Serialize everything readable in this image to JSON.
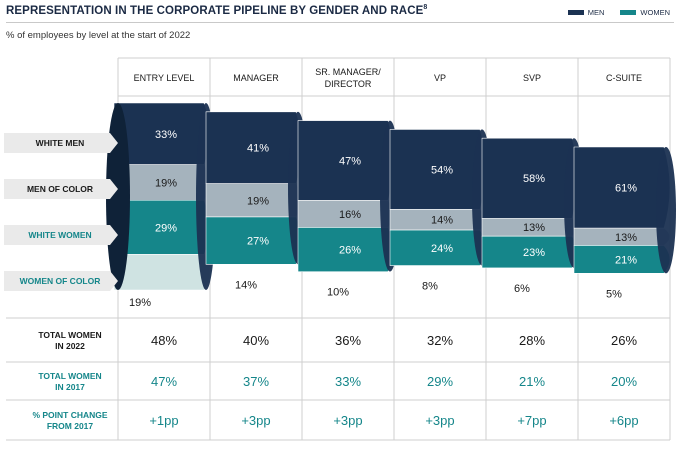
{
  "title": "REPRESENTATION IN THE CORPORATE PIPELINE BY GENDER AND RACE",
  "title_footnote": "8",
  "subtitle": "% of employees by level at the start of 2022",
  "legend": {
    "men": "MEN",
    "women": "WOMEN"
  },
  "colors": {
    "men": "#1b3252",
    "men_light": "#a5b3bd",
    "women": "#15868a",
    "women_light": "#cfe3e2",
    "pct_gray": "#eaeaea"
  },
  "chart_data": {
    "type": "bar",
    "categories": [
      "ENTRY LEVEL",
      "MANAGER",
      "SR. MANAGER/ DIRECTOR",
      "VP",
      "SVP",
      "C-SUITE"
    ],
    "series": [
      {
        "name": "WHITE MEN",
        "values": [
          33,
          41,
          47,
          54,
          58,
          61
        ]
      },
      {
        "name": "MEN OF COLOR",
        "values": [
          19,
          19,
          16,
          14,
          13,
          13
        ]
      },
      {
        "name": "WHITE WOMEN",
        "values": [
          29,
          27,
          26,
          24,
          23,
          21
        ]
      },
      {
        "name": "WOMEN OF COLOR",
        "values": [
          19,
          14,
          10,
          8,
          6,
          5
        ]
      }
    ],
    "value_labels": {
      "white_men": [
        "33%",
        "41%",
        "47%",
        "54%",
        "58%",
        "61%"
      ],
      "men_of_color": [
        "19%",
        "19%",
        "16%",
        "14%",
        "13%",
        "13%"
      ],
      "white_women": [
        "29%",
        "27%",
        "26%",
        "24%",
        "23%",
        "21%"
      ],
      "women_of_color": [
        "19%",
        "14%",
        "10%",
        "8%",
        "6%",
        "5%"
      ]
    },
    "row_labels": [
      "WHITE MEN",
      "MEN OF COLOR",
      "WHITE WOMEN",
      "WOMEN OF COLOR"
    ],
    "table": {
      "rows": [
        {
          "label": "TOTAL WOMEN IN 2022",
          "values": [
            "48%",
            "40%",
            "36%",
            "32%",
            "28%",
            "26%"
          ]
        },
        {
          "label": "TOTAL WOMEN IN 2017",
          "values": [
            "47%",
            "37%",
            "33%",
            "29%",
            "21%",
            "20%"
          ]
        },
        {
          "label": "% POINT CHANGE FROM 2017",
          "values": [
            "+1pp",
            "+3pp",
            "+3pp",
            "+3pp",
            "+7pp",
            "+6pp"
          ]
        }
      ]
    }
  }
}
